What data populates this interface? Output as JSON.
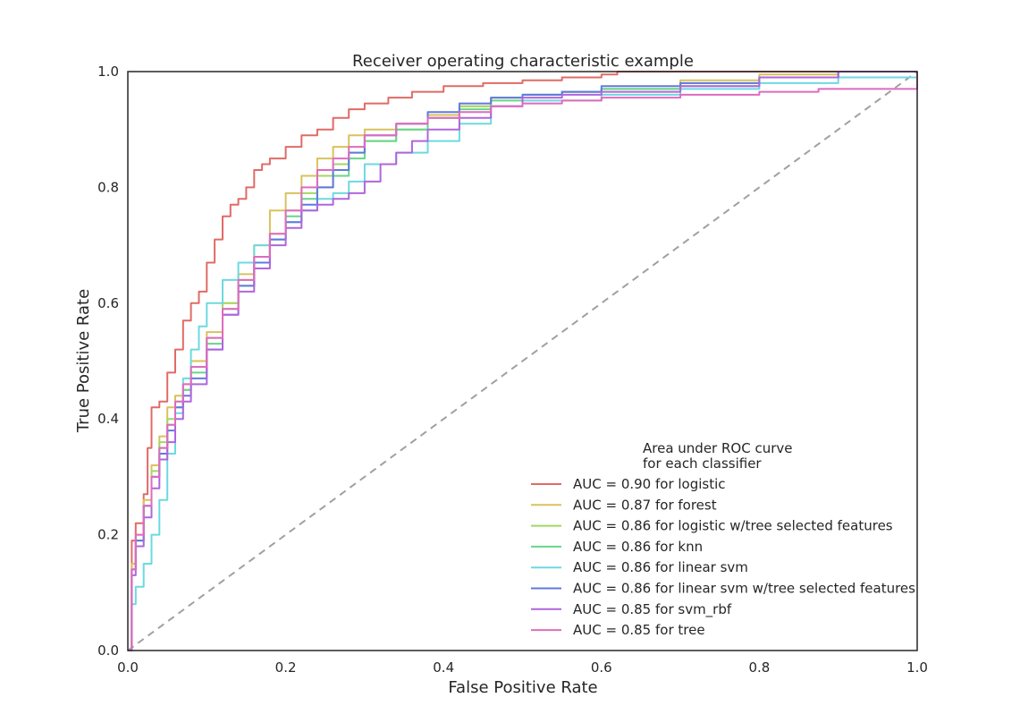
{
  "chart_data": {
    "type": "line",
    "title": "Receiver operating characteristic example",
    "xlabel": "False Positive Rate",
    "ylabel": "True Positive Rate",
    "xlim": [
      0,
      1
    ],
    "ylim": [
      0,
      1
    ],
    "xticks": [
      "0.0",
      "0.2",
      "0.4",
      "0.6",
      "0.8",
      "1.0"
    ],
    "yticks": [
      "0.0",
      "0.2",
      "0.4",
      "0.6",
      "0.8",
      "1.0"
    ],
    "grid": false,
    "legend": {
      "title_line1": "Area under ROC curve",
      "title_line2": "for each classifier",
      "placement": "lower-right"
    },
    "diagonal": {
      "x": [
        0,
        1
      ],
      "y": [
        0,
        1
      ],
      "color": "#a0a0a0",
      "style": "dashed"
    },
    "series": [
      {
        "name": "AUC = 0.90 for logistic",
        "color": "#e06b66",
        "x": [
          0,
          0.005,
          0.01,
          0.02,
          0.025,
          0.03,
          0.04,
          0.05,
          0.06,
          0.07,
          0.08,
          0.09,
          0.1,
          0.11,
          0.12,
          0.13,
          0.14,
          0.15,
          0.16,
          0.17,
          0.18,
          0.2,
          0.22,
          0.24,
          0.26,
          0.28,
          0.3,
          0.33,
          0.36,
          0.4,
          0.45,
          0.5,
          0.55,
          0.6,
          0.62,
          0.65,
          0.7,
          0.8,
          1.0
        ],
        "y": [
          0,
          0.19,
          0.22,
          0.27,
          0.35,
          0.42,
          0.43,
          0.48,
          0.52,
          0.57,
          0.6,
          0.62,
          0.67,
          0.71,
          0.75,
          0.77,
          0.78,
          0.8,
          0.83,
          0.84,
          0.85,
          0.87,
          0.89,
          0.9,
          0.92,
          0.935,
          0.945,
          0.955,
          0.965,
          0.975,
          0.98,
          0.985,
          0.99,
          0.995,
          1.0,
          1.0,
          1.0,
          1.0,
          1.0
        ]
      },
      {
        "name": "AUC = 0.87 for forest",
        "color": "#d8c25c",
        "x": [
          0,
          0.005,
          0.01,
          0.02,
          0.03,
          0.04,
          0.05,
          0.06,
          0.07,
          0.08,
          0.1,
          0.12,
          0.14,
          0.16,
          0.18,
          0.2,
          0.22,
          0.24,
          0.26,
          0.28,
          0.3,
          0.34,
          0.38,
          0.42,
          0.46,
          0.5,
          0.55,
          0.6,
          0.7,
          0.8,
          0.9,
          1.0
        ],
        "y": [
          0,
          0.15,
          0.2,
          0.26,
          0.32,
          0.37,
          0.42,
          0.44,
          0.46,
          0.5,
          0.55,
          0.6,
          0.65,
          0.7,
          0.76,
          0.79,
          0.82,
          0.85,
          0.87,
          0.89,
          0.9,
          0.91,
          0.925,
          0.94,
          0.955,
          0.96,
          0.965,
          0.97,
          0.985,
          0.995,
          1.0,
          1.0
        ]
      },
      {
        "name": "AUC = 0.86 for logistic w/tree selected features",
        "color": "#a2d765",
        "x": [
          0,
          0.005,
          0.01,
          0.02,
          0.03,
          0.04,
          0.05,
          0.06,
          0.07,
          0.08,
          0.1,
          0.12,
          0.14,
          0.16,
          0.18,
          0.2,
          0.22,
          0.24,
          0.26,
          0.28,
          0.3,
          0.34,
          0.38,
          0.42,
          0.46,
          0.5,
          0.55,
          0.6,
          0.7,
          0.8,
          0.9,
          1.0
        ],
        "y": [
          0,
          0.14,
          0.19,
          0.25,
          0.31,
          0.36,
          0.4,
          0.43,
          0.45,
          0.49,
          0.54,
          0.6,
          0.64,
          0.68,
          0.72,
          0.76,
          0.79,
          0.82,
          0.84,
          0.86,
          0.88,
          0.9,
          0.92,
          0.94,
          0.955,
          0.96,
          0.965,
          0.97,
          0.98,
          0.99,
          1.0,
          1.0
        ]
      },
      {
        "name": "AUC = 0.86 for knn",
        "color": "#66d68a",
        "x": [
          0,
          0.005,
          0.01,
          0.02,
          0.03,
          0.04,
          0.05,
          0.06,
          0.07,
          0.08,
          0.1,
          0.12,
          0.14,
          0.16,
          0.18,
          0.2,
          0.22,
          0.24,
          0.26,
          0.28,
          0.3,
          0.34,
          0.38,
          0.42,
          0.46,
          0.5,
          0.55,
          0.6,
          0.7,
          0.8,
          0.9,
          1.0
        ],
        "y": [
          0,
          0.14,
          0.19,
          0.25,
          0.3,
          0.35,
          0.39,
          0.42,
          0.45,
          0.48,
          0.53,
          0.59,
          0.63,
          0.67,
          0.71,
          0.75,
          0.78,
          0.8,
          0.82,
          0.85,
          0.88,
          0.9,
          0.92,
          0.935,
          0.95,
          0.96,
          0.965,
          0.97,
          0.975,
          0.99,
          1.0,
          1.0
        ]
      },
      {
        "name": "AUC = 0.86 for linear svm",
        "color": "#6dd9e0",
        "x": [
          0,
          0.005,
          0.01,
          0.02,
          0.03,
          0.04,
          0.05,
          0.06,
          0.07,
          0.08,
          0.09,
          0.1,
          0.12,
          0.14,
          0.16,
          0.18,
          0.2,
          0.22,
          0.24,
          0.26,
          0.28,
          0.3,
          0.34,
          0.38,
          0.42,
          0.46,
          0.5,
          0.55,
          0.6,
          0.7,
          0.8,
          0.9,
          1.0
        ],
        "y": [
          0,
          0.08,
          0.11,
          0.15,
          0.2,
          0.26,
          0.34,
          0.41,
          0.47,
          0.52,
          0.56,
          0.6,
          0.64,
          0.67,
          0.7,
          0.71,
          0.74,
          0.76,
          0.78,
          0.79,
          0.81,
          0.84,
          0.86,
          0.88,
          0.91,
          0.94,
          0.95,
          0.95,
          0.96,
          0.97,
          0.98,
          0.99,
          1.0
        ]
      },
      {
        "name": "AUC = 0.86 for linear svm w/tree selected features",
        "color": "#6179e0",
        "x": [
          0,
          0.005,
          0.01,
          0.02,
          0.03,
          0.04,
          0.05,
          0.06,
          0.07,
          0.08,
          0.1,
          0.12,
          0.14,
          0.16,
          0.18,
          0.2,
          0.22,
          0.24,
          0.26,
          0.28,
          0.3,
          0.34,
          0.38,
          0.42,
          0.46,
          0.5,
          0.55,
          0.6,
          0.7,
          0.8,
          0.9,
          1.0
        ],
        "y": [
          0,
          0.14,
          0.19,
          0.25,
          0.3,
          0.34,
          0.38,
          0.42,
          0.44,
          0.47,
          0.52,
          0.58,
          0.63,
          0.67,
          0.71,
          0.74,
          0.77,
          0.8,
          0.83,
          0.86,
          0.89,
          0.91,
          0.93,
          0.945,
          0.955,
          0.96,
          0.965,
          0.975,
          0.98,
          0.99,
          1.0,
          1.0
        ]
      },
      {
        "name": "AUC = 0.85 for svm_rbf",
        "color": "#b065dd",
        "x": [
          0,
          0.005,
          0.01,
          0.02,
          0.03,
          0.04,
          0.05,
          0.06,
          0.07,
          0.08,
          0.1,
          0.12,
          0.14,
          0.16,
          0.18,
          0.2,
          0.22,
          0.24,
          0.26,
          0.28,
          0.3,
          0.32,
          0.34,
          0.36,
          0.38,
          0.42,
          0.46,
          0.5,
          0.55,
          0.6,
          0.7,
          0.8,
          0.9,
          1.0
        ],
        "y": [
          0,
          0.13,
          0.18,
          0.23,
          0.28,
          0.33,
          0.36,
          0.4,
          0.43,
          0.46,
          0.52,
          0.58,
          0.62,
          0.66,
          0.7,
          0.73,
          0.76,
          0.77,
          0.78,
          0.79,
          0.81,
          0.84,
          0.86,
          0.88,
          0.9,
          0.92,
          0.94,
          0.955,
          0.96,
          0.965,
          0.975,
          0.99,
          1.0,
          1.0
        ]
      },
      {
        "name": "AUC = 0.85 for tree",
        "color": "#df6bbf",
        "x": [
          0,
          0.005,
          0.01,
          0.02,
          0.03,
          0.04,
          0.05,
          0.06,
          0.07,
          0.08,
          0.1,
          0.12,
          0.14,
          0.16,
          0.18,
          0.2,
          0.22,
          0.24,
          0.26,
          0.28,
          0.3,
          0.34,
          0.38,
          0.42,
          0.46,
          0.5,
          0.55,
          0.6,
          0.7,
          0.8,
          0.875,
          1.0
        ],
        "y": [
          0,
          0.14,
          0.2,
          0.25,
          0.3,
          0.35,
          0.39,
          0.43,
          0.46,
          0.49,
          0.54,
          0.59,
          0.64,
          0.68,
          0.72,
          0.76,
          0.8,
          0.83,
          0.85,
          0.87,
          0.89,
          0.91,
          0.92,
          0.93,
          0.94,
          0.945,
          0.95,
          0.955,
          0.96,
          0.965,
          0.97,
          1.0
        ]
      }
    ]
  }
}
